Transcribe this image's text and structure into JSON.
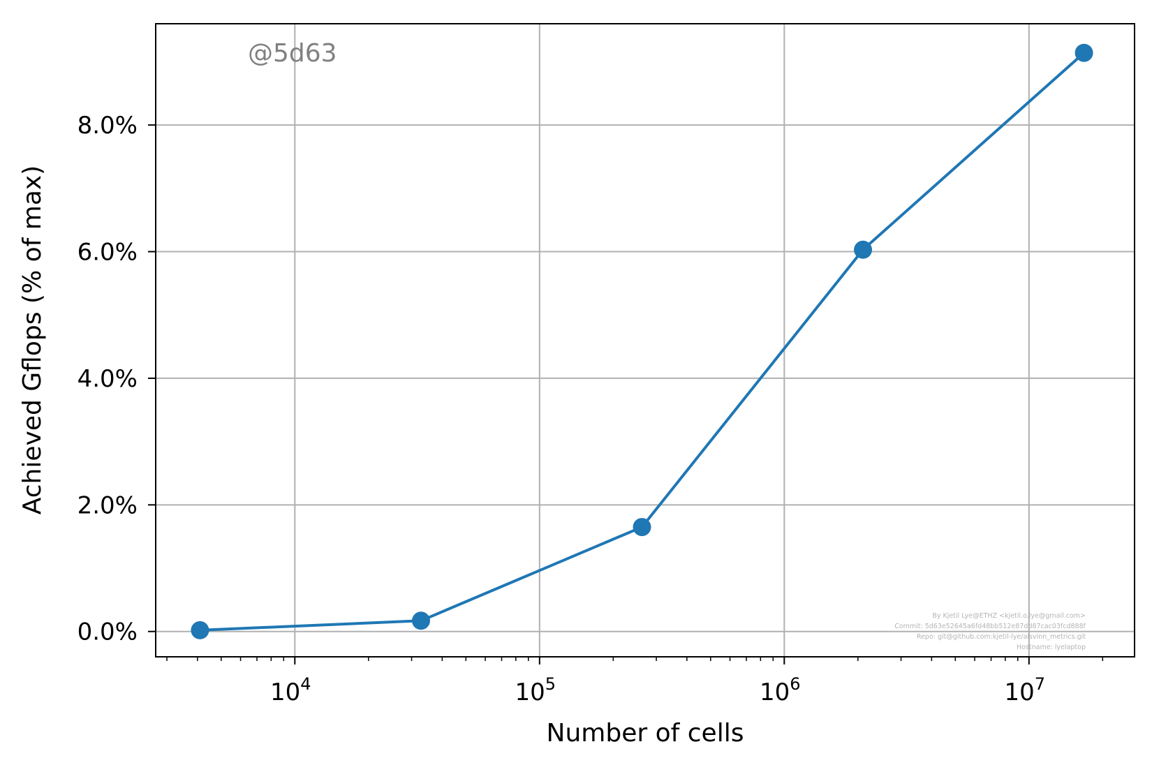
{
  "chart_data": {
    "type": "line",
    "title": "",
    "xlabel": "Number of cells",
    "ylabel": "Achieved Gflops (% of max)",
    "x_scale": "log",
    "x_base": 10,
    "xlim": [
      2700,
      27000000
    ],
    "ylim": [
      -0.004,
      0.096
    ],
    "x_ticks": [
      {
        "value": 10000,
        "base": "10",
        "exp": "4"
      },
      {
        "value": 100000,
        "base": "10",
        "exp": "5"
      },
      {
        "value": 1000000,
        "base": "10",
        "exp": "6"
      },
      {
        "value": 10000000,
        "base": "10",
        "exp": "7"
      }
    ],
    "y_ticks": [
      {
        "value": 0.0,
        "label": "0.0%"
      },
      {
        "value": 0.02,
        "label": "2.0%"
      },
      {
        "value": 0.04,
        "label": "4.0%"
      },
      {
        "value": 0.06,
        "label": "6.0%"
      },
      {
        "value": 0.08,
        "label": "8.0%"
      }
    ],
    "grid": true,
    "series": [
      {
        "color": "#1f77b4",
        "marker": "circle",
        "x": [
          4096,
          32768,
          262144,
          2097152,
          16777216
        ],
        "y": [
          0.0002,
          0.0017,
          0.0165,
          0.0603,
          0.0914
        ]
      }
    ],
    "watermark": "@5d63",
    "credit_lines": [
      "By Kjetil Lye@ETHZ <kjetil.o.lye@gmail.com>",
      "Commit: 5d63e52645a6fd48bb512e87dd87cac03fcd888f",
      "Repo: git@github.com:kjetil-lye/alsvinn_metrics.git",
      "Hostname: lyelaptop"
    ]
  }
}
